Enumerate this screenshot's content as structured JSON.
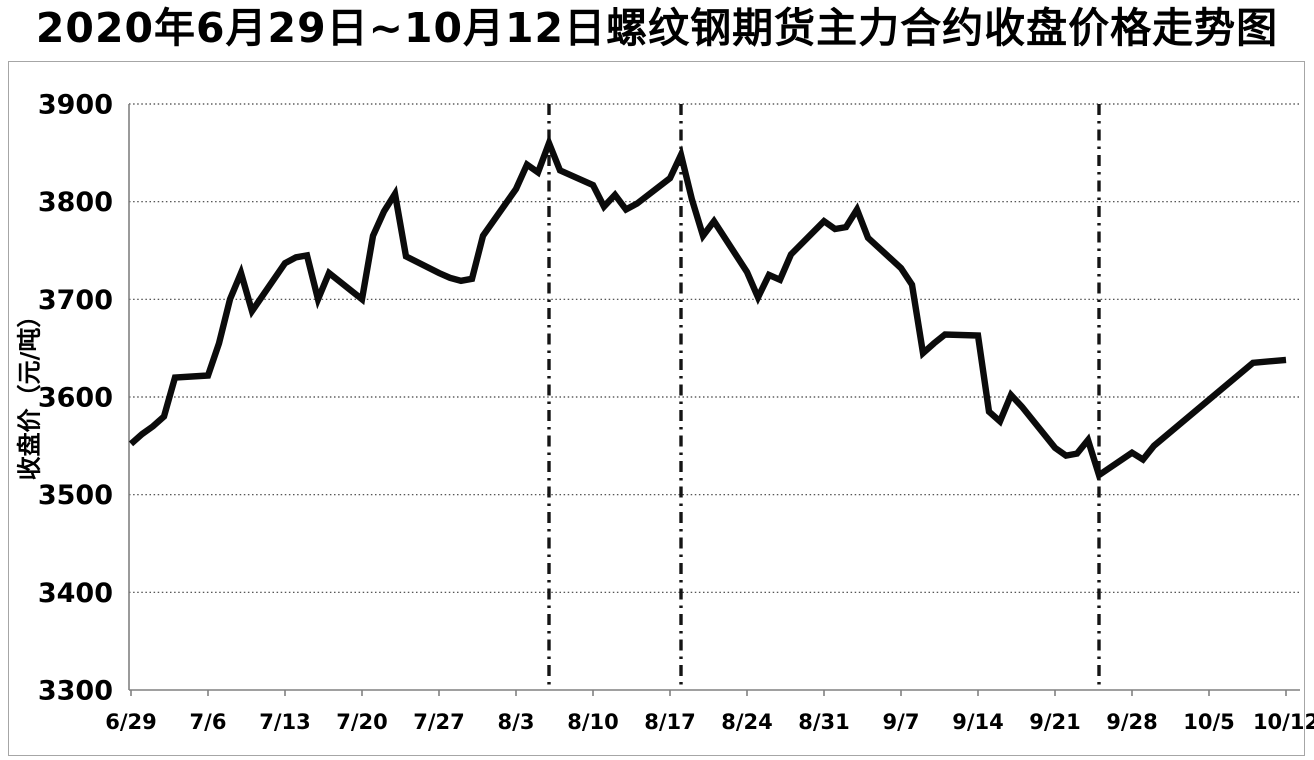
{
  "title": "2020年6月29日~10月12日螺纹钢期货主力合约收盘价格走势图",
  "chart_data": {
    "type": "line",
    "title": "2020年6月29日~10月12日螺纹钢期货主力合约收盘价格走势图",
    "xlabel": "",
    "ylabel": "收盘价（元/吨）",
    "ylim": [
      3300,
      3900
    ],
    "ytick_interval": 100,
    "yticks": [
      3900,
      3800,
      3700,
      3600,
      3500,
      3400,
      3300
    ],
    "xticks": [
      "6/29",
      "7/6",
      "7/13",
      "7/20",
      "7/27",
      "8/3",
      "8/10",
      "8/17",
      "8/24",
      "8/31",
      "9/7",
      "9/14",
      "9/21",
      "9/28",
      "10/5",
      "10/12"
    ],
    "x_axis_type": "calendar-date",
    "grid": "horizontal-dotted",
    "legend_position": "none",
    "line_color": "#0b0b0b",
    "marker_line_color": "#141414",
    "background": "#ffffff",
    "vertical_marker_dates": [
      "8/6",
      "8/18",
      "9/25"
    ],
    "series": [
      {
        "name": "螺纹钢期货主力合约收盘价",
        "points": [
          [
            "6/29",
            3552
          ],
          [
            "6/30",
            3562
          ],
          [
            "7/1",
            3570
          ],
          [
            "7/2",
            3580
          ],
          [
            "7/3",
            3620
          ],
          [
            "7/6",
            3622
          ],
          [
            "7/7",
            3655
          ],
          [
            "7/8",
            3700
          ],
          [
            "7/9",
            3727
          ],
          [
            "7/10",
            3688
          ],
          [
            "7/13",
            3737
          ],
          [
            "7/14",
            3743
          ],
          [
            "7/15",
            3745
          ],
          [
            "7/16",
            3700
          ],
          [
            "7/17",
            3727
          ],
          [
            "7/20",
            3700
          ],
          [
            "7/21",
            3765
          ],
          [
            "7/22",
            3790
          ],
          [
            "7/23",
            3808
          ],
          [
            "7/24",
            3744
          ],
          [
            "7/27",
            3727
          ],
          [
            "7/28",
            3722
          ],
          [
            "7/29",
            3719
          ],
          [
            "7/30",
            3721
          ],
          [
            "7/31",
            3765
          ],
          [
            "8/3",
            3813
          ],
          [
            "8/4",
            3838
          ],
          [
            "8/5",
            3830
          ],
          [
            "8/6",
            3860
          ],
          [
            "8/7",
            3832
          ],
          [
            "8/10",
            3817
          ],
          [
            "8/11",
            3795
          ],
          [
            "8/12",
            3807
          ],
          [
            "8/13",
            3792
          ],
          [
            "8/14",
            3798
          ],
          [
            "8/17",
            3824
          ],
          [
            "8/18",
            3848
          ],
          [
            "8/19",
            3802
          ],
          [
            "8/20",
            3765
          ],
          [
            "8/21",
            3780
          ],
          [
            "8/24",
            3728
          ],
          [
            "8/25",
            3702
          ],
          [
            "8/26",
            3725
          ],
          [
            "8/27",
            3720
          ],
          [
            "8/28",
            3746
          ],
          [
            "8/31",
            3780
          ],
          [
            "9/1",
            3772
          ],
          [
            "9/2",
            3774
          ],
          [
            "9/3",
            3792
          ],
          [
            "9/4",
            3763
          ],
          [
            "9/7",
            3732
          ],
          [
            "9/8",
            3715
          ],
          [
            "9/9",
            3645
          ],
          [
            "9/10",
            3655
          ],
          [
            "9/11",
            3664
          ],
          [
            "9/14",
            3663
          ],
          [
            "9/15",
            3585
          ],
          [
            "9/16",
            3575
          ],
          [
            "9/17",
            3602
          ],
          [
            "9/18",
            3590
          ],
          [
            "9/21",
            3548
          ],
          [
            "9/22",
            3540
          ],
          [
            "9/23",
            3542
          ],
          [
            "9/24",
            3556
          ],
          [
            "9/25",
            3520
          ],
          [
            "9/28",
            3543
          ],
          [
            "9/29",
            3536
          ],
          [
            "9/30",
            3550
          ],
          [
            "10/9",
            3635
          ],
          [
            "10/12",
            3638
          ]
        ]
      }
    ]
  }
}
